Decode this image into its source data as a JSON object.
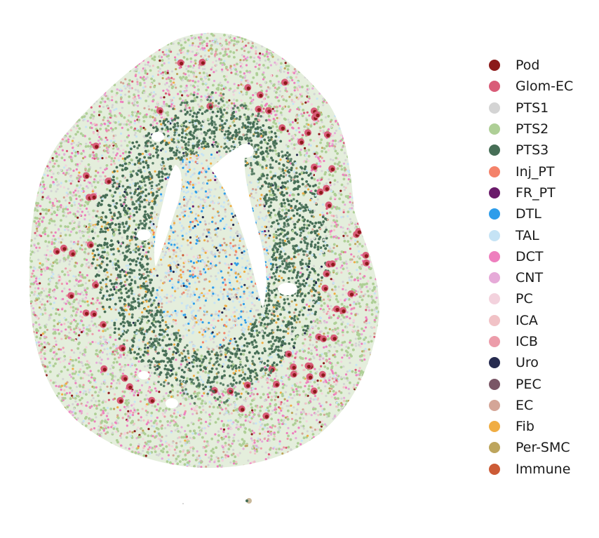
{
  "chart_data": {
    "type": "scatter",
    "title": "",
    "xlabel": "",
    "ylabel": "",
    "axes_visible": false,
    "grid": false,
    "legend_placement": "right",
    "series": [
      {
        "name": "Pod",
        "color": "#8B1A1A"
      },
      {
        "name": "Glom-EC",
        "color": "#D95C78"
      },
      {
        "name": "PTS1",
        "color": "#D4D4D4"
      },
      {
        "name": "PTS2",
        "color": "#AECF96"
      },
      {
        "name": "PTS3",
        "color": "#466E56"
      },
      {
        "name": "Inj_PT",
        "color": "#F4826A"
      },
      {
        "name": "FR_PT",
        "color": "#6A1B6A"
      },
      {
        "name": "DTL",
        "color": "#2E9DEA"
      },
      {
        "name": "TAL",
        "color": "#C5E3F5"
      },
      {
        "name": "DCT",
        "color": "#EE7FBE"
      },
      {
        "name": "CNT",
        "color": "#E6AAD8"
      },
      {
        "name": "PC",
        "color": "#F3D2DD"
      },
      {
        "name": "ICA",
        "color": "#F1C2C6"
      },
      {
        "name": "ICB",
        "color": "#EC9CAA"
      },
      {
        "name": "Uro",
        "color": "#262B4F"
      },
      {
        "name": "PEC",
        "color": "#7A5666"
      },
      {
        "name": "EC",
        "color": "#D4A597"
      },
      {
        "name": "Fib",
        "color": "#F0AD43"
      },
      {
        "name": "Per-SMC",
        "color": "#BDA55D"
      },
      {
        "name": "Immune",
        "color": "#CC5B36"
      }
    ]
  }
}
